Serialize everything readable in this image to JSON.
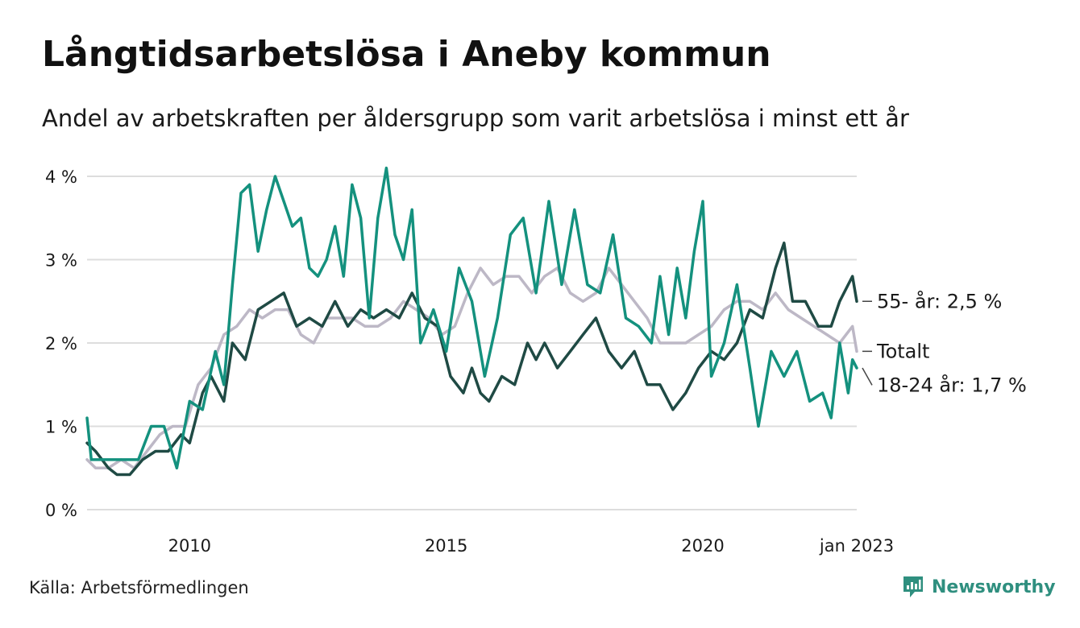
{
  "header": {
    "title": "Långtidsarbetslösa i Aneby kommun",
    "subtitle": "Andel av arbetskraften per åldersgrupp som varit arbetslösa i minst ett år"
  },
  "footer": {
    "source": "Källa: Arbetsförmedlingen",
    "brand": "Newsworthy"
  },
  "colors": {
    "series_young": "#14917e",
    "series_old": "#1f4a44",
    "series_total": "#bdb8c6",
    "grid": "#dddddd",
    "brand": "#2f8f7f"
  },
  "chart_data": {
    "type": "line",
    "title": "Långtidsarbetslösa i Aneby kommun",
    "subtitle": "Andel av arbetskraften per åldersgrupp som varit arbetslösa i minst ett år",
    "xlabel": "",
    "ylabel": "",
    "xlim": [
      "2008-01",
      "2023-01"
    ],
    "ylim": [
      0,
      4
    ],
    "yticks": [
      0,
      1,
      2,
      3,
      4
    ],
    "ytick_labels": [
      "0 %",
      "1 %",
      "2 %",
      "3 %",
      "4 %"
    ],
    "xticks": [
      "2010-01",
      "2015-01",
      "2020-01",
      "2023-01"
    ],
    "xtick_labels": [
      "2010",
      "2015",
      "2020",
      "jan 2023"
    ],
    "grid": true,
    "legend": "end-labels",
    "series": [
      {
        "name": "Totalt",
        "end_label": "Totalt",
        "color": "#bdb8c6",
        "points": [
          [
            "2008-01",
            0.6
          ],
          [
            "2008-03",
            0.5
          ],
          [
            "2008-06",
            0.5
          ],
          [
            "2008-09",
            0.6
          ],
          [
            "2008-12",
            0.5
          ],
          [
            "2009-03",
            0.7
          ],
          [
            "2009-06",
            0.9
          ],
          [
            "2009-09",
            1.0
          ],
          [
            "2009-12",
            1.0
          ],
          [
            "2010-03",
            1.5
          ],
          [
            "2010-06",
            1.7
          ],
          [
            "2010-09",
            2.1
          ],
          [
            "2010-12",
            2.2
          ],
          [
            "2011-03",
            2.4
          ],
          [
            "2011-06",
            2.3
          ],
          [
            "2011-09",
            2.4
          ],
          [
            "2011-12",
            2.4
          ],
          [
            "2012-03",
            2.1
          ],
          [
            "2012-06",
            2.0
          ],
          [
            "2012-09",
            2.3
          ],
          [
            "2012-12",
            2.3
          ],
          [
            "2013-03",
            2.3
          ],
          [
            "2013-06",
            2.2
          ],
          [
            "2013-09",
            2.2
          ],
          [
            "2013-12",
            2.3
          ],
          [
            "2014-03",
            2.5
          ],
          [
            "2014-06",
            2.4
          ],
          [
            "2014-09",
            2.3
          ],
          [
            "2014-12",
            2.1
          ],
          [
            "2015-03",
            2.2
          ],
          [
            "2015-06",
            2.6
          ],
          [
            "2015-09",
            2.9
          ],
          [
            "2015-12",
            2.7
          ],
          [
            "2016-03",
            2.8
          ],
          [
            "2016-06",
            2.8
          ],
          [
            "2016-09",
            2.6
          ],
          [
            "2016-12",
            2.8
          ],
          [
            "2017-03",
            2.9
          ],
          [
            "2017-06",
            2.6
          ],
          [
            "2017-09",
            2.5
          ],
          [
            "2017-12",
            2.6
          ],
          [
            "2018-03",
            2.9
          ],
          [
            "2018-06",
            2.7
          ],
          [
            "2018-09",
            2.5
          ],
          [
            "2018-12",
            2.3
          ],
          [
            "2019-03",
            2.0
          ],
          [
            "2019-06",
            2.0
          ],
          [
            "2019-09",
            2.0
          ],
          [
            "2019-12",
            2.1
          ],
          [
            "2020-03",
            2.2
          ],
          [
            "2020-06",
            2.4
          ],
          [
            "2020-09",
            2.5
          ],
          [
            "2020-12",
            2.5
          ],
          [
            "2021-03",
            2.4
          ],
          [
            "2021-06",
            2.6
          ],
          [
            "2021-09",
            2.4
          ],
          [
            "2021-12",
            2.3
          ],
          [
            "2022-03",
            2.2
          ],
          [
            "2022-06",
            2.1
          ],
          [
            "2022-09",
            2.0
          ],
          [
            "2022-12",
            2.2
          ],
          [
            "2023-01",
            1.9
          ]
        ]
      },
      {
        "name": "55- år",
        "end_label": "55- år: 2,5 %",
        "color": "#1f4a44",
        "points": [
          [
            "2008-01",
            0.8
          ],
          [
            "2008-03",
            0.7
          ],
          [
            "2008-06",
            0.5
          ],
          [
            "2008-08",
            0.42
          ],
          [
            "2008-11",
            0.42
          ],
          [
            "2009-02",
            0.6
          ],
          [
            "2009-05",
            0.7
          ],
          [
            "2009-08",
            0.7
          ],
          [
            "2009-11",
            0.9
          ],
          [
            "2010-01",
            0.8
          ],
          [
            "2010-04",
            1.4
          ],
          [
            "2010-06",
            1.6
          ],
          [
            "2010-09",
            1.3
          ],
          [
            "2010-11",
            2.0
          ],
          [
            "2011-02",
            1.8
          ],
          [
            "2011-05",
            2.4
          ],
          [
            "2011-08",
            2.5
          ],
          [
            "2011-11",
            2.6
          ],
          [
            "2012-02",
            2.2
          ],
          [
            "2012-05",
            2.3
          ],
          [
            "2012-08",
            2.2
          ],
          [
            "2012-11",
            2.5
          ],
          [
            "2013-02",
            2.2
          ],
          [
            "2013-05",
            2.4
          ],
          [
            "2013-08",
            2.3
          ],
          [
            "2013-11",
            2.4
          ],
          [
            "2014-02",
            2.3
          ],
          [
            "2014-05",
            2.6
          ],
          [
            "2014-08",
            2.3
          ],
          [
            "2014-11",
            2.2
          ],
          [
            "2015-02",
            1.6
          ],
          [
            "2015-05",
            1.4
          ],
          [
            "2015-07",
            1.7
          ],
          [
            "2015-09",
            1.4
          ],
          [
            "2015-11",
            1.3
          ],
          [
            "2016-02",
            1.6
          ],
          [
            "2016-05",
            1.5
          ],
          [
            "2016-08",
            2.0
          ],
          [
            "2016-10",
            1.8
          ],
          [
            "2016-12",
            2.0
          ],
          [
            "2017-03",
            1.7
          ],
          [
            "2017-06",
            1.9
          ],
          [
            "2017-09",
            2.1
          ],
          [
            "2017-12",
            2.3
          ],
          [
            "2018-03",
            1.9
          ],
          [
            "2018-06",
            1.7
          ],
          [
            "2018-09",
            1.9
          ],
          [
            "2018-12",
            1.5
          ],
          [
            "2019-03",
            1.5
          ],
          [
            "2019-06",
            1.2
          ],
          [
            "2019-09",
            1.4
          ],
          [
            "2019-12",
            1.7
          ],
          [
            "2020-03",
            1.9
          ],
          [
            "2020-06",
            1.8
          ],
          [
            "2020-09",
            2.0
          ],
          [
            "2020-12",
            2.4
          ],
          [
            "2021-03",
            2.3
          ],
          [
            "2021-06",
            2.9
          ],
          [
            "2021-08",
            3.2
          ],
          [
            "2021-10",
            2.5
          ],
          [
            "2022-01",
            2.5
          ],
          [
            "2022-04",
            2.2
          ],
          [
            "2022-07",
            2.2
          ],
          [
            "2022-09",
            2.5
          ],
          [
            "2022-11",
            2.7
          ],
          [
            "2022-12",
            2.8
          ],
          [
            "2023-01",
            2.5
          ]
        ]
      },
      {
        "name": "18-24 år",
        "end_label": "18-24 år: 1,7 %",
        "color": "#14917e",
        "points": [
          [
            "2008-01",
            1.1
          ],
          [
            "2008-02",
            0.6
          ],
          [
            "2008-06",
            0.6
          ],
          [
            "2008-10",
            0.6
          ],
          [
            "2009-01",
            0.6
          ],
          [
            "2009-04",
            1.0
          ],
          [
            "2009-07",
            1.0
          ],
          [
            "2009-10",
            0.5
          ],
          [
            "2010-01",
            1.3
          ],
          [
            "2010-04",
            1.2
          ],
          [
            "2010-07",
            1.9
          ],
          [
            "2010-09",
            1.5
          ],
          [
            "2010-11",
            2.7
          ],
          [
            "2011-01",
            3.8
          ],
          [
            "2011-03",
            3.9
          ],
          [
            "2011-05",
            3.1
          ],
          [
            "2011-07",
            3.6
          ],
          [
            "2011-09",
            4.0
          ],
          [
            "2011-11",
            3.7
          ],
          [
            "2012-01",
            3.4
          ],
          [
            "2012-03",
            3.5
          ],
          [
            "2012-05",
            2.9
          ],
          [
            "2012-07",
            2.8
          ],
          [
            "2012-09",
            3.0
          ],
          [
            "2012-11",
            3.4
          ],
          [
            "2013-01",
            2.8
          ],
          [
            "2013-03",
            3.9
          ],
          [
            "2013-05",
            3.5
          ],
          [
            "2013-07",
            2.3
          ],
          [
            "2013-09",
            3.5
          ],
          [
            "2013-11",
            4.1
          ],
          [
            "2014-01",
            3.3
          ],
          [
            "2014-03",
            3.0
          ],
          [
            "2014-05",
            3.6
          ],
          [
            "2014-07",
            2.0
          ],
          [
            "2014-10",
            2.4
          ],
          [
            "2015-01",
            1.9
          ],
          [
            "2015-04",
            2.9
          ],
          [
            "2015-07",
            2.5
          ],
          [
            "2015-10",
            1.6
          ],
          [
            "2016-01",
            2.3
          ],
          [
            "2016-04",
            3.3
          ],
          [
            "2016-07",
            3.5
          ],
          [
            "2016-10",
            2.6
          ],
          [
            "2017-01",
            3.7
          ],
          [
            "2017-04",
            2.7
          ],
          [
            "2017-07",
            3.6
          ],
          [
            "2017-10",
            2.7
          ],
          [
            "2018-01",
            2.6
          ],
          [
            "2018-04",
            3.3
          ],
          [
            "2018-07",
            2.3
          ],
          [
            "2018-10",
            2.2
          ],
          [
            "2019-01",
            2.0
          ],
          [
            "2019-03",
            2.8
          ],
          [
            "2019-05",
            2.1
          ],
          [
            "2019-07",
            2.9
          ],
          [
            "2019-09",
            2.3
          ],
          [
            "2019-11",
            3.1
          ],
          [
            "2020-01",
            3.7
          ],
          [
            "2020-03",
            1.6
          ],
          [
            "2020-06",
            2.0
          ],
          [
            "2020-09",
            2.7
          ],
          [
            "2020-12",
            1.7
          ],
          [
            "2021-02",
            1.0
          ],
          [
            "2021-05",
            1.9
          ],
          [
            "2021-08",
            1.6
          ],
          [
            "2021-11",
            1.9
          ],
          [
            "2022-02",
            1.3
          ],
          [
            "2022-05",
            1.4
          ],
          [
            "2022-07",
            1.1
          ],
          [
            "2022-09",
            2.0
          ],
          [
            "2022-11",
            1.4
          ],
          [
            "2022-12",
            1.8
          ],
          [
            "2023-01",
            1.7
          ]
        ]
      }
    ]
  }
}
